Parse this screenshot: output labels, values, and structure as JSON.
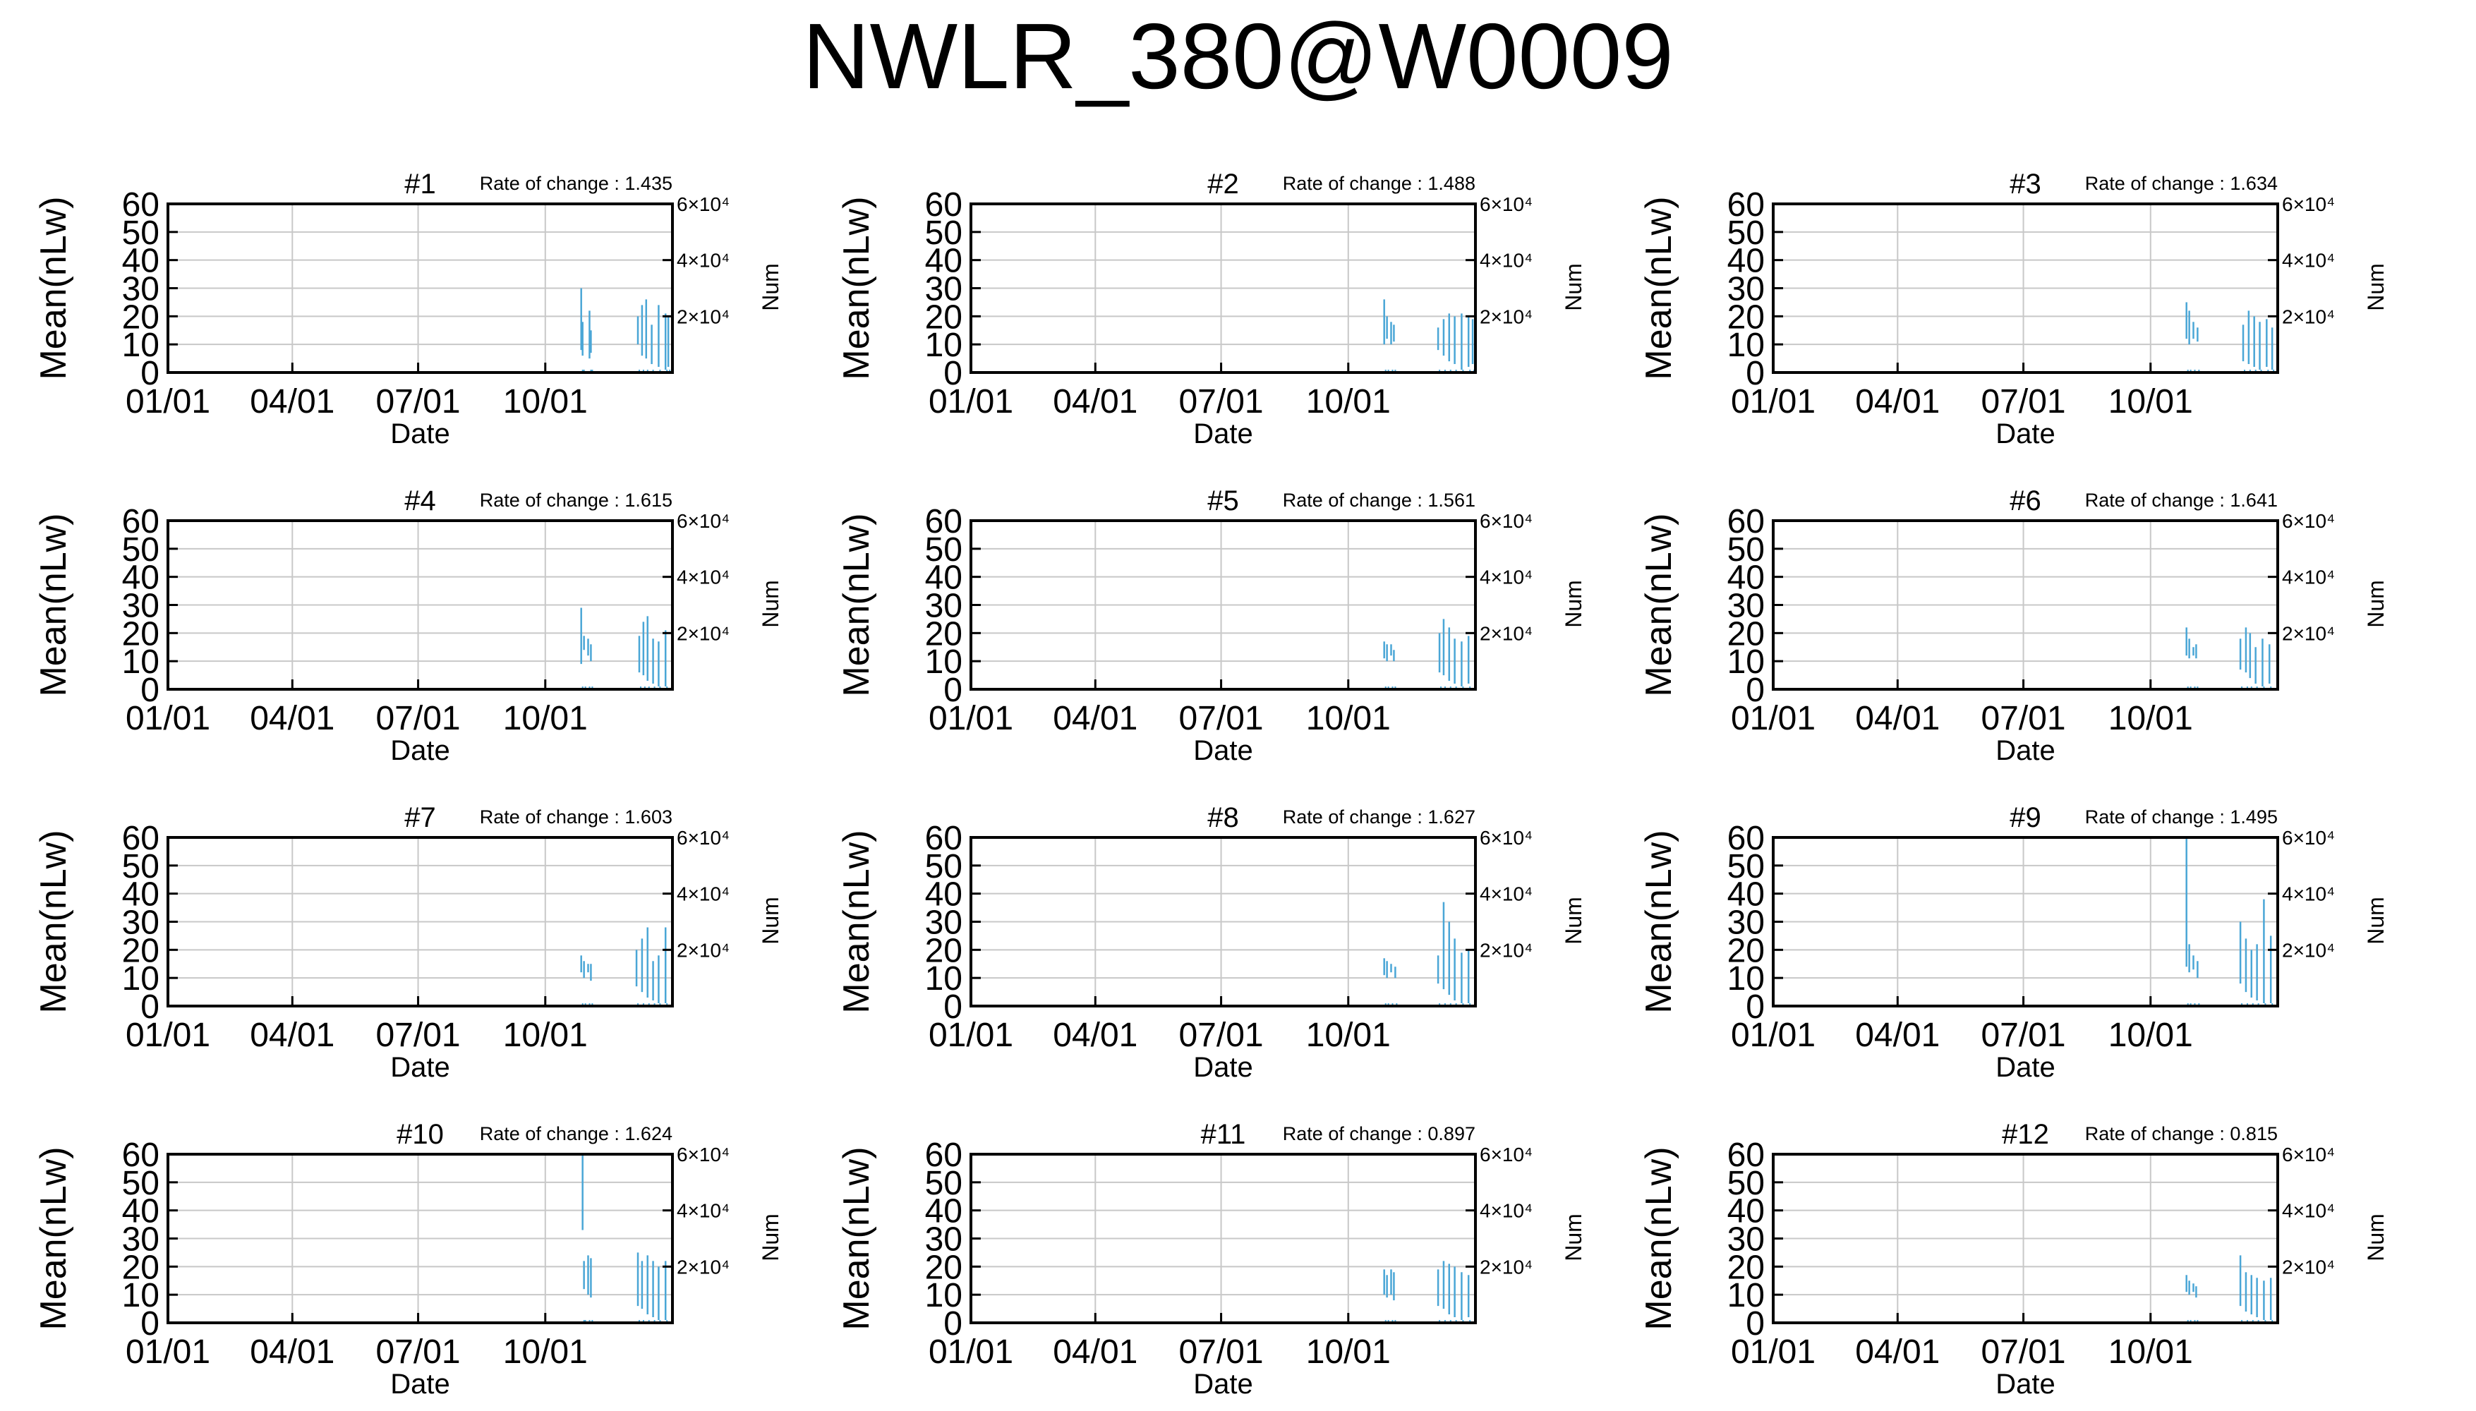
{
  "title": "NWLR_380@W0009",
  "colors": {
    "series": "#4aa6d6",
    "grid": "#c8c8c8",
    "axis": "#000000"
  },
  "chart_data": {
    "type": "line",
    "layout": "4x3 grid of small multiples",
    "shared": {
      "xlabel": "Date",
      "ylabel": "Mean(nLw)",
      "y2label": "Num",
      "ylim": [
        0,
        60
      ],
      "yticks": [
        "0",
        "10",
        "20",
        "30",
        "40",
        "50",
        "60"
      ],
      "y2lim": [
        0,
        60000
      ],
      "y2ticks": [
        {
          "value": 20000,
          "label": "2×10⁴"
        },
        {
          "value": 40000,
          "label": "4×10⁴"
        },
        {
          "value": 60000,
          "label": "6×10⁴"
        }
      ],
      "xlim": [
        "01/01",
        "12/31"
      ],
      "xticks": [
        {
          "label": "01/01",
          "day": 0
        },
        {
          "label": "04/01",
          "day": 90
        },
        {
          "label": "07/01",
          "day": 181
        },
        {
          "label": "10/01",
          "day": 273
        }
      ],
      "grid": true,
      "rate_prefix": "Rate of change : "
    },
    "panels": [
      {
        "name": "#1",
        "rate": "1.435",
        "bars": [
          [
            299,
            8,
            30
          ],
          [
            300,
            6,
            18
          ],
          [
            305,
            5,
            22
          ],
          [
            306,
            7,
            15
          ],
          [
            340,
            10,
            20
          ],
          [
            343,
            6,
            24
          ],
          [
            346,
            5,
            26
          ],
          [
            350,
            3,
            17
          ],
          [
            355,
            2,
            24
          ],
          [
            360,
            1,
            21
          ],
          [
            362,
            2,
            20
          ]
        ]
      },
      {
        "name": "#2",
        "rate": "1.488",
        "bars": [
          [
            299,
            10,
            26
          ],
          [
            301,
            12,
            20
          ],
          [
            304,
            10,
            18
          ],
          [
            306,
            11,
            17
          ],
          [
            338,
            8,
            16
          ],
          [
            342,
            6,
            19
          ],
          [
            346,
            4,
            21
          ],
          [
            350,
            3,
            20
          ],
          [
            355,
            1,
            21
          ],
          [
            360,
            2,
            20
          ],
          [
            363,
            3,
            19
          ]
        ]
      },
      {
        "name": "#3",
        "rate": "1.634",
        "bars": [
          [
            299,
            12,
            25
          ],
          [
            301,
            10,
            22
          ],
          [
            304,
            12,
            18
          ],
          [
            307,
            11,
            16
          ],
          [
            340,
            4,
            17
          ],
          [
            344,
            3,
            22
          ],
          [
            348,
            2,
            20
          ],
          [
            352,
            1,
            18
          ],
          [
            357,
            2,
            19
          ],
          [
            361,
            1,
            16
          ]
        ]
      },
      {
        "name": "#4",
        "rate": "1.615",
        "bars": [
          [
            299,
            9,
            29
          ],
          [
            301,
            14,
            19
          ],
          [
            304,
            12,
            18
          ],
          [
            306,
            10,
            16
          ],
          [
            341,
            6,
            19
          ],
          [
            344,
            5,
            24
          ],
          [
            347,
            3,
            26
          ],
          [
            351,
            2,
            18
          ],
          [
            355,
            1,
            17
          ],
          [
            360,
            1,
            21
          ]
        ]
      },
      {
        "name": "#5",
        "rate": "1.561",
        "bars": [
          [
            299,
            11,
            17
          ],
          [
            301,
            10,
            16
          ],
          [
            304,
            12,
            16
          ],
          [
            306,
            10,
            14
          ],
          [
            339,
            6,
            20
          ],
          [
            342,
            5,
            25
          ],
          [
            346,
            3,
            22
          ],
          [
            350,
            2,
            18
          ],
          [
            355,
            1,
            17
          ],
          [
            360,
            2,
            19
          ]
        ]
      },
      {
        "name": "#6",
        "rate": "1.641",
        "bars": [
          [
            299,
            12,
            22
          ],
          [
            301,
            11,
            18
          ],
          [
            304,
            12,
            15
          ],
          [
            306,
            11,
            16
          ],
          [
            338,
            7,
            18
          ],
          [
            342,
            6,
            22
          ],
          [
            345,
            4,
            20
          ],
          [
            349,
            2,
            15
          ],
          [
            354,
            1,
            18
          ],
          [
            359,
            2,
            16
          ]
        ]
      },
      {
        "name": "#7",
        "rate": "1.603",
        "bars": [
          [
            299,
            12,
            18
          ],
          [
            301,
            10,
            16
          ],
          [
            304,
            12,
            15
          ],
          [
            306,
            9,
            15
          ],
          [
            339,
            7,
            20
          ],
          [
            343,
            5,
            24
          ],
          [
            347,
            3,
            28
          ],
          [
            351,
            2,
            16
          ],
          [
            355,
            1,
            18
          ],
          [
            360,
            1,
            28
          ]
        ]
      },
      {
        "name": "#8",
        "rate": "1.627",
        "bars": [
          [
            299,
            11,
            17
          ],
          [
            301,
            10,
            16
          ],
          [
            304,
            12,
            15
          ],
          [
            307,
            10,
            14
          ],
          [
            338,
            8,
            18
          ],
          [
            342,
            6,
            37
          ],
          [
            346,
            4,
            30
          ],
          [
            350,
            2,
            24
          ],
          [
            355,
            1,
            19
          ],
          [
            360,
            1,
            20
          ]
        ]
      },
      {
        "name": "#9",
        "rate": "1.495",
        "bars": [
          [
            299,
            14,
            60
          ],
          [
            301,
            12,
            22
          ],
          [
            304,
            13,
            18
          ],
          [
            307,
            10,
            16
          ],
          [
            338,
            8,
            30
          ],
          [
            342,
            5,
            24
          ],
          [
            346,
            3,
            20
          ],
          [
            350,
            2,
            22
          ],
          [
            355,
            1,
            38
          ],
          [
            360,
            1,
            25
          ]
        ]
      },
      {
        "name": "#10",
        "rate": "1.624",
        "bars": [
          [
            300,
            33,
            60
          ],
          [
            301,
            12,
            22
          ],
          [
            304,
            10,
            24
          ],
          [
            306,
            9,
            23
          ],
          [
            340,
            6,
            25
          ],
          [
            343,
            5,
            22
          ],
          [
            347,
            3,
            24
          ],
          [
            351,
            2,
            22
          ],
          [
            355,
            1,
            20
          ],
          [
            360,
            1,
            22
          ]
        ]
      },
      {
        "name": "#11",
        "rate": "0.897",
        "bars": [
          [
            299,
            10,
            19
          ],
          [
            301,
            9,
            17
          ],
          [
            304,
            10,
            19
          ],
          [
            306,
            8,
            18
          ],
          [
            338,
            6,
            19
          ],
          [
            342,
            5,
            22
          ],
          [
            346,
            3,
            21
          ],
          [
            350,
            2,
            20
          ],
          [
            355,
            1,
            18
          ],
          [
            360,
            2,
            17
          ]
        ]
      },
      {
        "name": "#12",
        "rate": "0.815",
        "bars": [
          [
            299,
            11,
            17
          ],
          [
            301,
            10,
            15
          ],
          [
            304,
            11,
            14
          ],
          [
            306,
            9,
            13
          ],
          [
            338,
            6,
            24
          ],
          [
            342,
            4,
            18
          ],
          [
            346,
            3,
            17
          ],
          [
            350,
            2,
            16
          ],
          [
            355,
            1,
            15
          ],
          [
            360,
            1,
            16
          ]
        ]
      }
    ]
  }
}
